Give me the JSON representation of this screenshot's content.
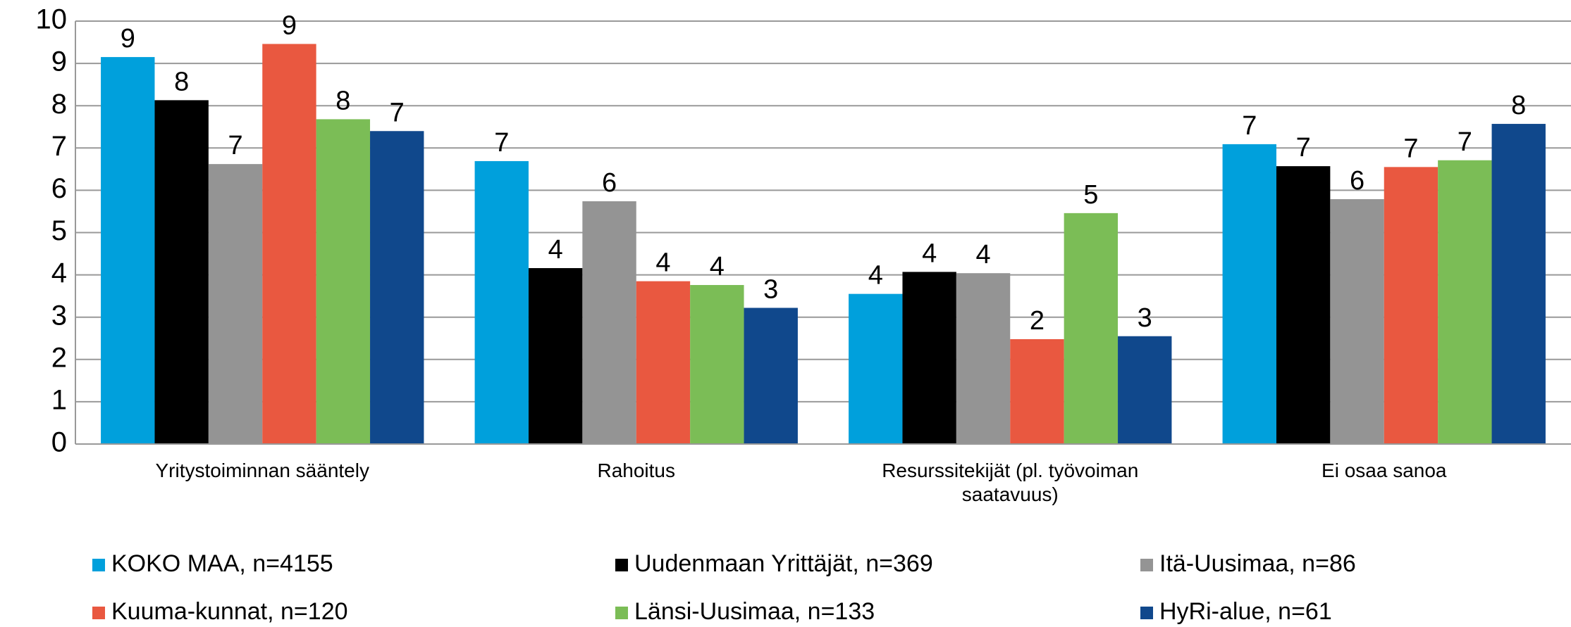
{
  "chart_data": {
    "type": "bar",
    "categories": [
      "Yritystoiminnan sääntely",
      "Rahoitus",
      "Resurssitekijät (pl. työvoiman saatavuus)",
      "Ei osaa sanoa"
    ],
    "series": [
      {
        "name": "KOKO MAA, n=4155",
        "color": "#00a0dc",
        "values": [
          9.15,
          6.69,
          3.55,
          7.09
        ],
        "value_labels": [
          "9",
          "7",
          "4",
          "7"
        ]
      },
      {
        "name": "Uudenmaan Yrittäjät, n=369",
        "color": "#000000",
        "values": [
          8.13,
          4.16,
          4.07,
          6.57
        ],
        "value_labels": [
          "8",
          "4",
          "4",
          "7"
        ]
      },
      {
        "name": "Itä-Uusimaa, n=86",
        "color": "#949494",
        "values": [
          6.62,
          5.74,
          4.04,
          5.79
        ],
        "value_labels": [
          "7",
          "6",
          "4",
          "6"
        ]
      },
      {
        "name": "Kuuma-kunnat, n=120",
        "color": "#e95840",
        "values": [
          9.46,
          3.85,
          2.48,
          6.55
        ],
        "value_labels": [
          "9",
          "4",
          "2",
          "7"
        ]
      },
      {
        "name": "Länsi-Uusimaa, n=133",
        "color": "#7bbd56",
        "values": [
          7.68,
          3.76,
          5.46,
          6.71
        ],
        "value_labels": [
          "8",
          "4",
          "5",
          "7"
        ]
      },
      {
        "name": "HyRi-alue, n=61",
        "color": "#10488c",
        "values": [
          7.4,
          3.22,
          2.55,
          7.57
        ],
        "value_labels": [
          "7",
          "3",
          "3",
          "8"
        ]
      }
    ],
    "ylim": [
      0,
      10
    ],
    "yticks": [
      0,
      1,
      2,
      3,
      4,
      5,
      6,
      7,
      8,
      9,
      10
    ],
    "grid": true,
    "legend": "bottom"
  }
}
